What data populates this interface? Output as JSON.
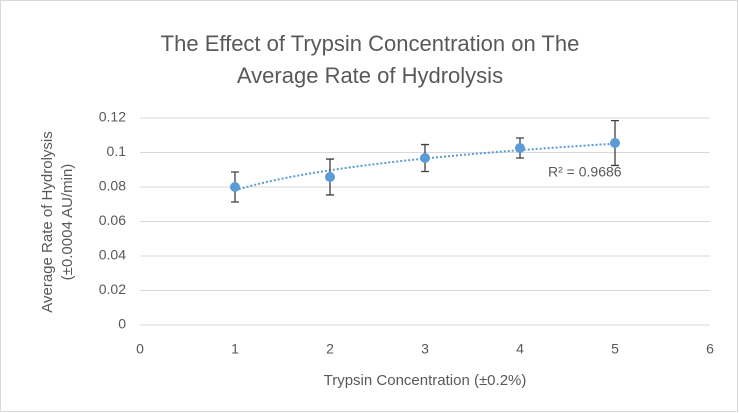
{
  "chart_data": {
    "type": "scatter",
    "title": [
      "The Effect of Trypsin Concentration on The",
      "Average Rate of Hydrolysis"
    ],
    "xlabel": "Trypsin Concentration (±0.2%)",
    "ylabel": [
      "Average Rate of Hydrolysis",
      "(±0.0004 AU/min)"
    ],
    "x": [
      1,
      2,
      3,
      4,
      5
    ],
    "series": [
      {
        "name": null,
        "color": "#5b9bd5",
        "values": [
          0.08,
          0.0858,
          0.0968,
          0.1026,
          0.1055
        ],
        "errors": [
          0.0087,
          0.0104,
          0.0078,
          0.0058,
          0.013
        ]
      }
    ],
    "trendline": "logarithmic",
    "annotation": "R² = 0.9686",
    "xlim": [
      0,
      6
    ],
    "xticks": [
      0,
      1,
      2,
      3,
      4,
      5,
      6
    ],
    "ylim": [
      0,
      0.12
    ],
    "yticks": [
      0,
      0.02,
      0.04,
      0.06,
      0.08,
      0.1,
      0.12
    ],
    "grid": true
  }
}
